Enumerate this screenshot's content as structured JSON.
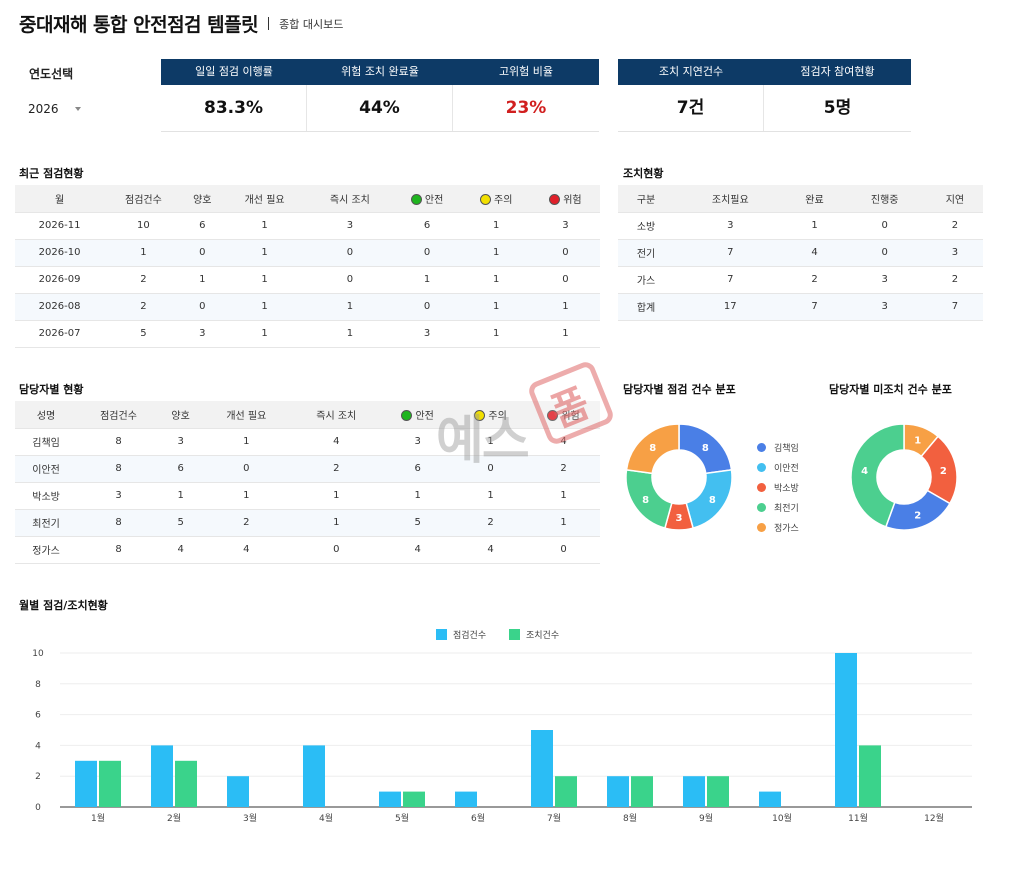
{
  "header": {
    "title": "중대재해 통합 안전점검 템플릿",
    "subtitle": "종합 대시보드"
  },
  "year": {
    "label": "연도선택",
    "value": "2026"
  },
  "kpis_left": [
    {
      "label": "일일 점검 이행률",
      "value": "83.3%",
      "color": "#111111"
    },
    {
      "label": "위험 조치 완료율",
      "value": "44%",
      "color": "#111111"
    },
    {
      "label": "고위험 비율",
      "value": "23%",
      "color": "#d11f1f"
    }
  ],
  "kpis_right": [
    {
      "label": "조치 지연건수",
      "value": "7건"
    },
    {
      "label": "점검자 참여현황",
      "value": "5명"
    }
  ],
  "colors": {
    "header_bg": "#0d3a66",
    "safe": "#1fb51f",
    "caution": "#f2e000",
    "danger": "#e0202a",
    "bar_check": "#2bbdf5",
    "bar_action": "#3ad38b"
  },
  "recent": {
    "title": "최근 점검현황",
    "headers": [
      "월",
      "점검건수",
      "양호",
      "개선 필요",
      "즉시 조치",
      "안전",
      "주의",
      "위험"
    ],
    "rows": [
      [
        "2026-11",
        "10",
        "6",
        "1",
        "3",
        "6",
        "1",
        "3"
      ],
      [
        "2026-10",
        "1",
        "0",
        "1",
        "0",
        "0",
        "1",
        "0"
      ],
      [
        "2026-09",
        "2",
        "1",
        "1",
        "0",
        "1",
        "1",
        "0"
      ],
      [
        "2026-08",
        "2",
        "0",
        "1",
        "1",
        "0",
        "1",
        "1"
      ],
      [
        "2026-07",
        "5",
        "3",
        "1",
        "1",
        "3",
        "1",
        "1"
      ]
    ]
  },
  "action": {
    "title": "조치현황",
    "headers": [
      "구분",
      "조치필요",
      "완료",
      "진행중",
      "지연"
    ],
    "rows": [
      [
        "소방",
        "3",
        "1",
        "0",
        "2"
      ],
      [
        "전기",
        "7",
        "4",
        "0",
        "3"
      ],
      [
        "가스",
        "7",
        "2",
        "3",
        "2"
      ],
      [
        "합계",
        "17",
        "7",
        "3",
        "7"
      ]
    ]
  },
  "person": {
    "title": "담당자별 현황",
    "headers": [
      "성명",
      "점검건수",
      "양호",
      "개선 필요",
      "즉시 조치",
      "안전",
      "주의",
      "위험"
    ],
    "rows": [
      [
        "김책임",
        "8",
        "3",
        "1",
        "4",
        "3",
        "1",
        "4"
      ],
      [
        "이안전",
        "8",
        "6",
        "0",
        "2",
        "6",
        "0",
        "2"
      ],
      [
        "박소방",
        "3",
        "1",
        "1",
        "1",
        "1",
        "1",
        "1"
      ],
      [
        "최전기",
        "8",
        "5",
        "2",
        "1",
        "5",
        "2",
        "1"
      ],
      [
        "정가스",
        "8",
        "4",
        "4",
        "0",
        "4",
        "4",
        "0"
      ]
    ]
  },
  "watermark": {
    "text": "예스",
    "badge": "폼"
  },
  "chart_data": [
    {
      "type": "pie",
      "title": "담당자별 점검 건수 분포",
      "categories": [
        "김책임",
        "이안전",
        "박소방",
        "최전기",
        "정가스"
      ],
      "values": [
        8,
        8,
        3,
        8,
        8
      ],
      "colors": [
        "#4a7fe6",
        "#43bff0",
        "#f2603f",
        "#4ccf8f",
        "#f7a045"
      ],
      "legend": "right"
    },
    {
      "type": "pie",
      "title": "담당자별 미조치 건수 분포",
      "categories": [
        "김책임",
        "이안전",
        "박소방",
        "최전기",
        "정가스"
      ],
      "values": [
        2,
        0,
        2,
        4,
        1
      ],
      "display_order": [
        "정가스",
        "이안전",
        "박소방",
        "김책임",
        "최전기"
      ],
      "colors": [
        "#4a7fe6",
        "#43bff0",
        "#f2603f",
        "#4ccf8f",
        "#f7a045"
      ]
    },
    {
      "type": "bar",
      "title": "월별 점검/조치현황",
      "categories": [
        "1월",
        "2월",
        "3월",
        "4월",
        "5월",
        "6월",
        "7월",
        "8월",
        "9월",
        "10월",
        "11월",
        "12월"
      ],
      "series": [
        {
          "name": "점검건수",
          "values": [
            3,
            4,
            2,
            4,
            1,
            1,
            5,
            2,
            2,
            1,
            10,
            0
          ],
          "color": "#2bbdf5"
        },
        {
          "name": "조치건수",
          "values": [
            3,
            3,
            0,
            0,
            1,
            0,
            2,
            2,
            2,
            0,
            4,
            0
          ],
          "color": "#3ad38b"
        }
      ],
      "ylim": [
        0,
        10
      ],
      "yticks": [
        0,
        2,
        4,
        6,
        8,
        10
      ],
      "legend": "top",
      "grid": true
    }
  ]
}
